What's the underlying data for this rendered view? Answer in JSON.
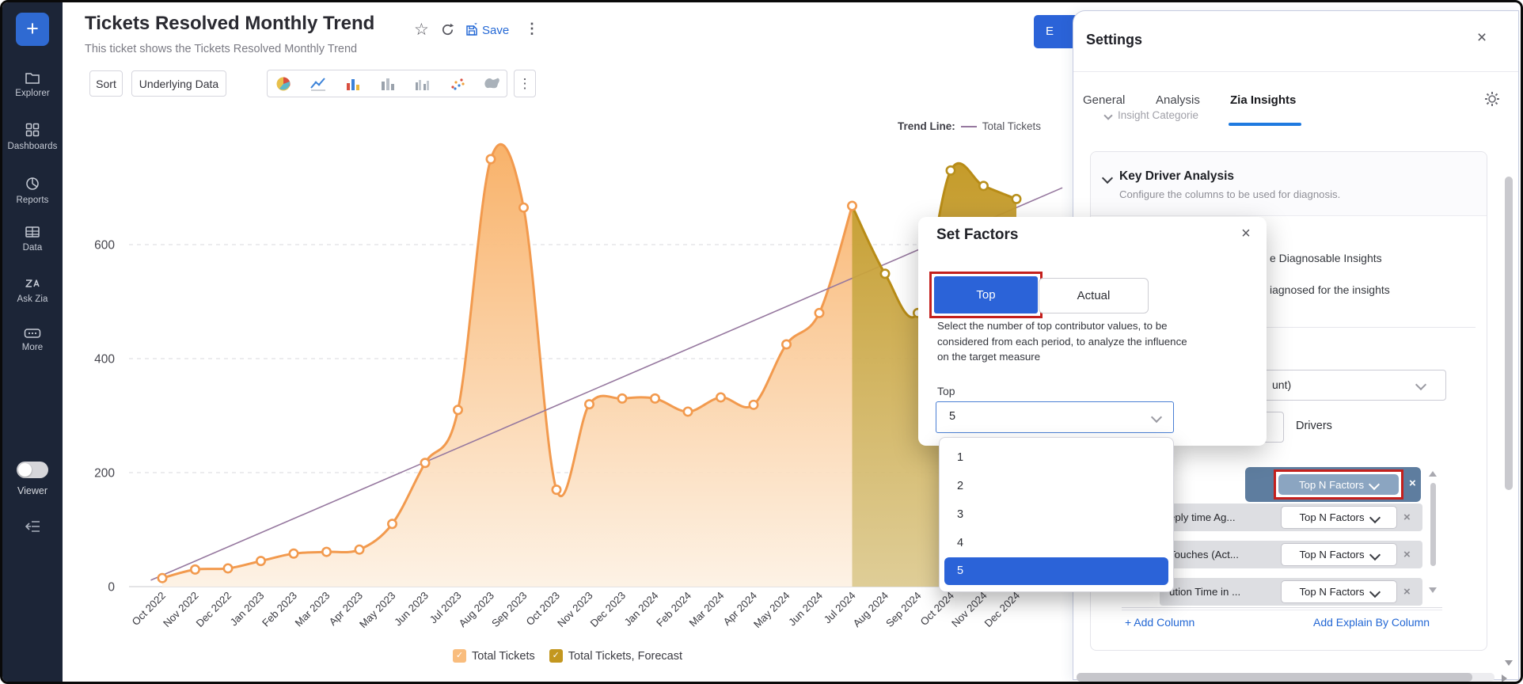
{
  "sidebar": {
    "new_button_label": "+",
    "items": [
      {
        "icon": "folder-icon",
        "label": "Explorer"
      },
      {
        "icon": "dashboards-icon",
        "label": "Dashboards"
      },
      {
        "icon": "reports-icon",
        "label": "Reports"
      },
      {
        "icon": "data-icon",
        "label": "Data"
      },
      {
        "icon": "ask-zia-icon",
        "label": "Ask Zia"
      },
      {
        "icon": "more-icon",
        "label": "More"
      }
    ],
    "viewer_label": "Viewer"
  },
  "header": {
    "title": "Tickets Resolved Monthly Trend",
    "subtitle": "This ticket shows the Tickets Resolved Monthly Trend",
    "save_label": "Save",
    "edit_button_fragment": "E"
  },
  "toolbar": {
    "sort_label": "Sort",
    "underlying_data_label": "Underlying Data",
    "chart_type_icons": [
      "pie-chart-icon",
      "line-chart-icon",
      "bar-chart-icon",
      "stacked-bar-icon",
      "grouped-bar-icon",
      "scatter-plot-icon",
      "map-chart-icon"
    ]
  },
  "chart_data": {
    "type": "area",
    "title": "Tickets Resolved Monthly Trend",
    "categories": [
      "Oct 2022",
      "Nov 2022",
      "Dec 2022",
      "Jan 2023",
      "Feb 2023",
      "Mar 2023",
      "Apr 2023",
      "May 2023",
      "Jun 2023",
      "Jul 2023",
      "Aug 2023",
      "Sep 2023",
      "Oct 2023",
      "Nov 2023",
      "Dec 2023",
      "Jan 2024",
      "Feb 2024",
      "Mar 2024",
      "Apr 2024",
      "May 2024",
      "Jun 2024",
      "Jul 2024",
      "Aug 2024",
      "Sep 2024",
      "Oct 2024",
      "Nov 2024",
      "Dec 2024"
    ],
    "series": [
      {
        "name": "Total Tickets",
        "color": "#f29a4e",
        "fill_top": "#f8ae62",
        "fill_bottom": "#fdf1e3",
        "values": [
          15,
          30,
          32,
          45,
          58,
          61,
          65,
          110,
          217,
          310,
          750,
          665,
          170,
          320,
          330,
          330,
          307,
          332,
          319,
          425,
          480,
          668,
          null,
          null,
          null,
          null,
          null
        ]
      },
      {
        "name": "Total Tickets, Forecast",
        "color": "#b88c17",
        "fill_top": "#c2961f",
        "fill_bottom": "#dcc98e",
        "values": [
          null,
          null,
          null,
          null,
          null,
          null,
          null,
          null,
          null,
          null,
          null,
          null,
          null,
          null,
          null,
          null,
          null,
          null,
          null,
          null,
          null,
          668,
          549,
          480,
          730,
          703,
          680
        ]
      }
    ],
    "trend_line": {
      "label": "Total Tickets",
      "color": "#96789f",
      "start_value": 20,
      "end_value": 665
    },
    "yticks": [
      0,
      200,
      400,
      600
    ],
    "ylim": [
      0,
      800
    ],
    "grid": "dashed-horizontal",
    "legend_position": "bottom"
  },
  "chart_legend": {
    "trend_prefix": "Trend Line:",
    "trend_series_label": "Total Tickets",
    "items": [
      {
        "label": "Total Tickets",
        "color": "#f9bd7e",
        "check": "✓"
      },
      {
        "label": "Total Tickets, Forecast",
        "color": "#c3971f",
        "check": "✓"
      }
    ]
  },
  "settings": {
    "title": "Settings",
    "tabs": [
      {
        "label": "General",
        "active": false
      },
      {
        "label": "Analysis",
        "active": false
      },
      {
        "label": "Zia Insights",
        "active": true
      }
    ],
    "scrolled_fragment": "Insight Categorie",
    "key_driver": {
      "title": "Key Driver Analysis",
      "subtitle": "Configure the columns to be used for diagnosis.",
      "fragment_line1": "e Diagnosable Insights",
      "fragment_line2": "iagnosed for the insights",
      "measure_dropdown_fragment": "unt)",
      "drivers_label": "Drivers",
      "rows": [
        {
          "name": "",
          "factor_label": "Top N Factors",
          "highlighted": true
        },
        {
          "name": "eply time Ag...",
          "factor_label": "Top N Factors",
          "highlighted": false
        },
        {
          "name": "Touches (Act...",
          "factor_label": "Top N Factors",
          "highlighted": false
        },
        {
          "name": "ution Time in ...",
          "factor_label": "Top N Factors",
          "highlighted": false
        }
      ],
      "add_column_label": "+ Add Column",
      "add_explain_label": "Add Explain By Column"
    }
  },
  "set_factors": {
    "title": "Set Factors",
    "mode_tabs": [
      {
        "label": "Top",
        "active": true
      },
      {
        "label": "Actual",
        "active": false
      }
    ],
    "description_lines": [
      "Select the number of top contributor values, to be",
      "considered from each period, to analyze the influence",
      "on the target measure"
    ],
    "field_label": "Top",
    "selected_value": "5",
    "options": [
      "1",
      "2",
      "3",
      "4",
      "5"
    ],
    "highlighted_option": "5"
  },
  "colors": {
    "accent_blue": "#2b63d8",
    "annotation_red": "#c4201d",
    "sidebar_bg": "#1c2537",
    "link_blue": "#2367d4",
    "actual_orange": "#f29a4e",
    "forecast_gold": "#b88c17",
    "trend_purple": "#96789f"
  }
}
